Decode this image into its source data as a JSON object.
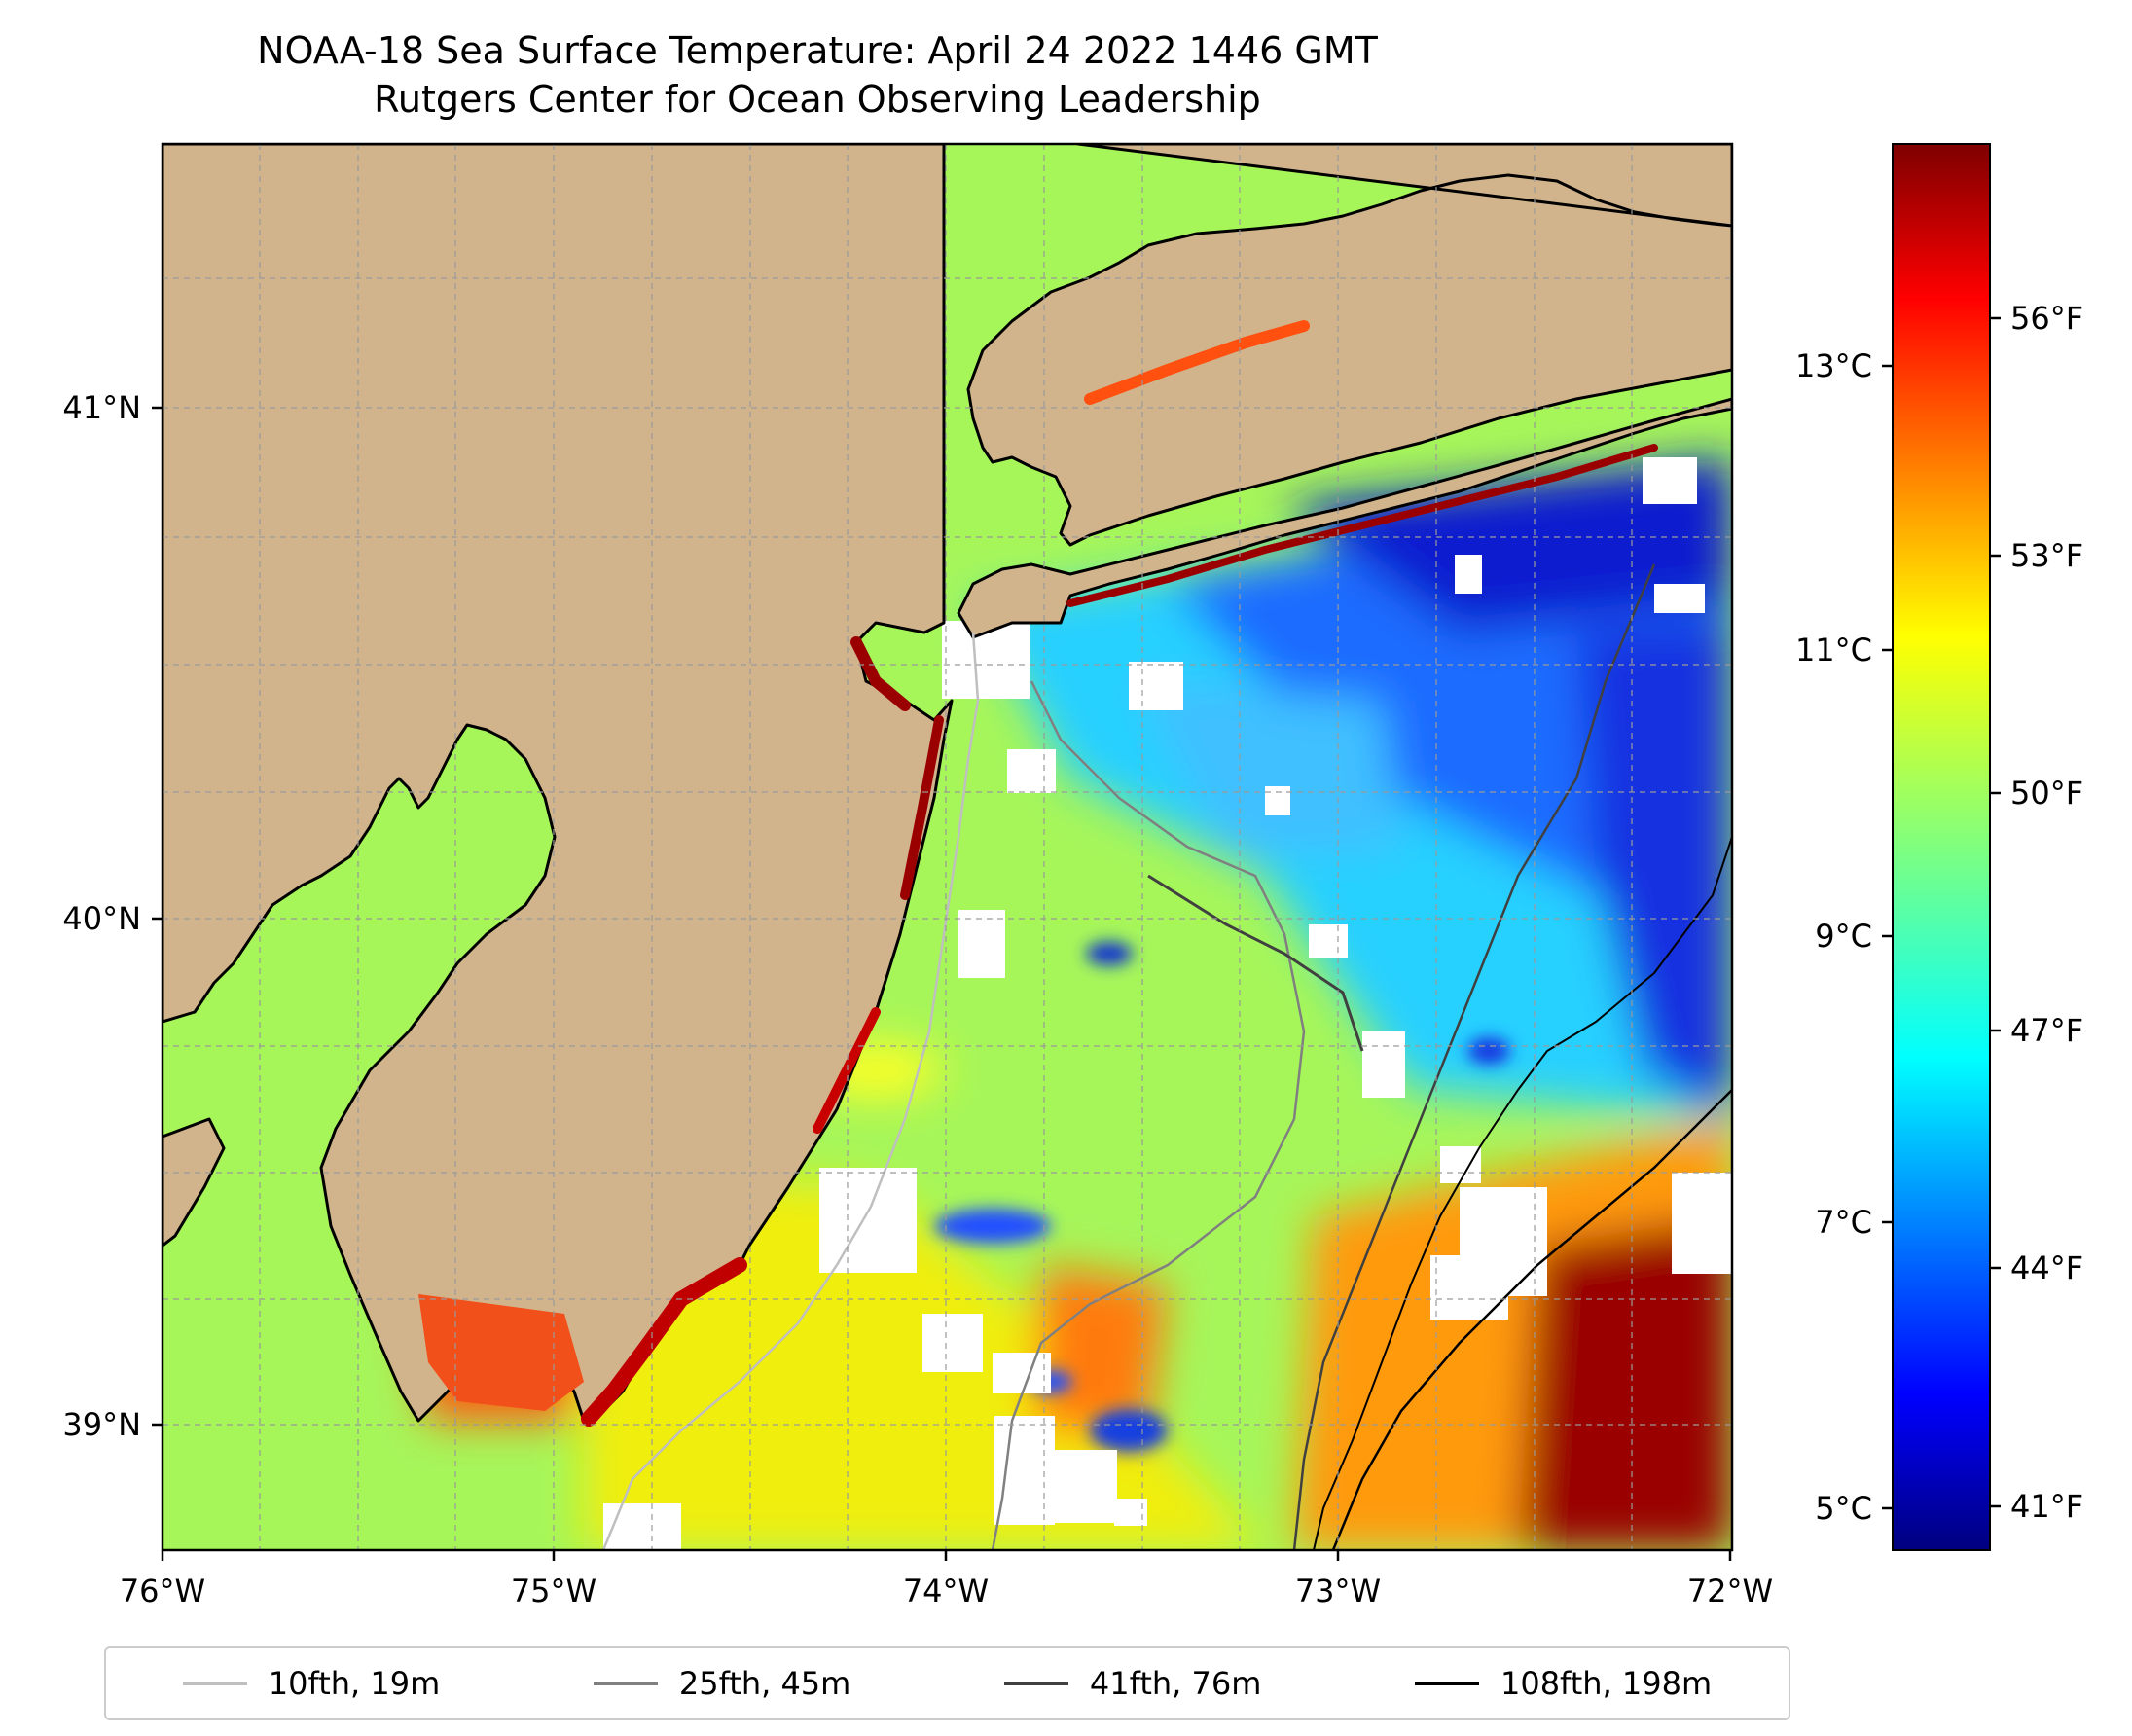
{
  "title": {
    "line1": "NOAA-18 Sea Surface Temperature: April 24 2022 1446 GMT",
    "line2": "Rutgers Center for Ocean Observing Leadership"
  },
  "map": {
    "lon_range": [
      -76,
      -72
    ],
    "lat_range": [
      38.75,
      41.55
    ],
    "x_ticks": [
      "76°W",
      "75°W",
      "74°W",
      "73°W",
      "72°W"
    ],
    "y_ticks": [
      "41°N",
      "40°N",
      "39°N"
    ],
    "land_color": "#d2b48c",
    "gridlines": "on"
  },
  "colorbar": {
    "colormap": "jet",
    "celsius_ticks": [
      "5°C",
      "7°C",
      "9°C",
      "11°C",
      "13°C"
    ],
    "fahrenheit_ticks": [
      "41°F",
      "44°F",
      "47°F",
      "50°F",
      "53°F",
      "56°F"
    ]
  },
  "legend": [
    {
      "label": "10fth, 19m",
      "color": "#bfbfbf"
    },
    {
      "label": "25fth, 45m",
      "color": "#808080"
    },
    {
      "label": "41fth, 76m",
      "color": "#404040"
    },
    {
      "label": "108fth, 198m",
      "color": "#000000"
    }
  ]
}
